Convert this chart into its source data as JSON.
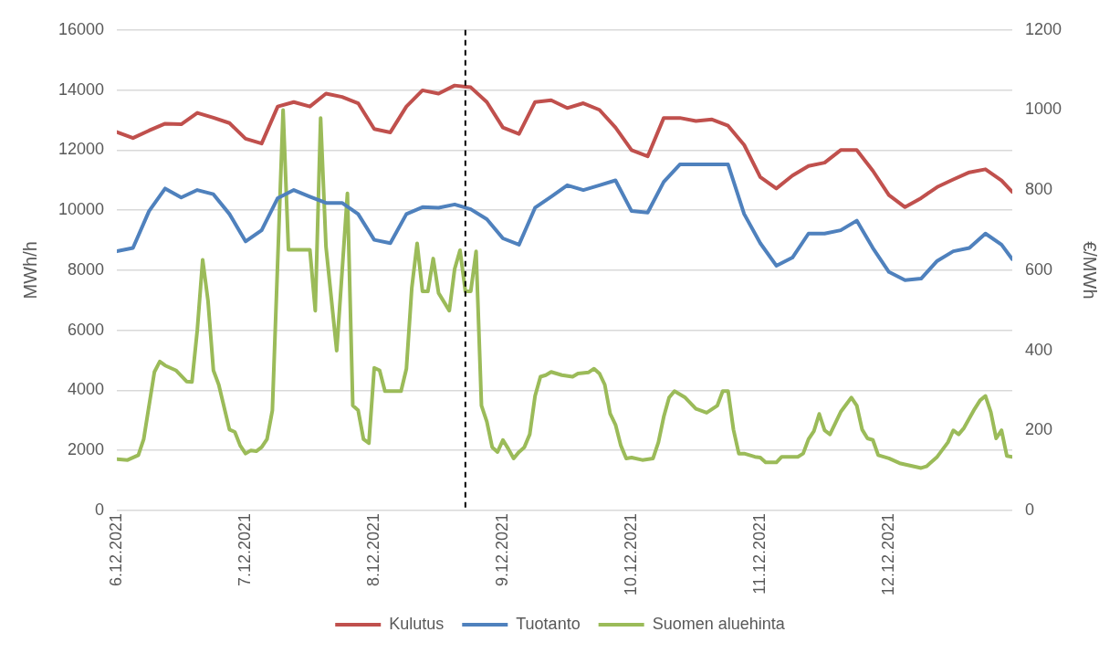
{
  "chart_data": {
    "type": "line",
    "ylabel": "MWh/h",
    "y2label": "€/MWh",
    "x": [
      "2021-12-06T00:00",
      "2021-12-06T03:00",
      "2021-12-06T06:00",
      "2021-12-06T09:00",
      "2021-12-06T12:00",
      "2021-12-06T15:00",
      "2021-12-06T18:00",
      "2021-12-06T21:00",
      "2021-12-07T00:00",
      "2021-12-07T03:00",
      "2021-12-07T06:00",
      "2021-12-07T09:00",
      "2021-12-07T12:00",
      "2021-12-07T15:00",
      "2021-12-07T18:00",
      "2021-12-07T21:00",
      "2021-12-08T00:00",
      "2021-12-08T03:00",
      "2021-12-08T06:00",
      "2021-12-08T09:00",
      "2021-12-08T12:00",
      "2021-12-08T15:00",
      "2021-12-08T18:00",
      "2021-12-08T21:00",
      "2021-12-09T00:00",
      "2021-12-09T03:00",
      "2021-12-09T06:00",
      "2021-12-09T09:00",
      "2021-12-09T12:00",
      "2021-12-09T15:00",
      "2021-12-09T18:00",
      "2021-12-09T21:00",
      "2021-12-10T00:00",
      "2021-12-10T03:00",
      "2021-12-10T06:00",
      "2021-12-10T09:00",
      "2021-12-10T12:00",
      "2021-12-10T15:00",
      "2021-12-10T18:00",
      "2021-12-10T21:00",
      "2021-12-11T00:00",
      "2021-12-11T03:00",
      "2021-12-11T06:00",
      "2021-12-11T09:00",
      "2021-12-11T12:00",
      "2021-12-11T15:00",
      "2021-12-11T18:00",
      "2021-12-11T21:00",
      "2021-12-12T00:00",
      "2021-12-12T03:00",
      "2021-12-12T06:00",
      "2021-12-12T09:00",
      "2021-12-12T12:00",
      "2021-12-12T15:00",
      "2021-12-12T18:00",
      "2021-12-12T21:00",
      "2021-12-12T23:00"
    ],
    "xlim": [
      "2021-12-06T00:00",
      "2021-12-12T23:00"
    ],
    "xticks": [
      {
        "value": "2021-12-06",
        "label": "6.12.2021"
      },
      {
        "value": "2021-12-07",
        "label": "7.12.2021"
      },
      {
        "value": "2021-12-08",
        "label": "8.12.2021"
      },
      {
        "value": "2021-12-09",
        "label": "9.12.2021"
      },
      {
        "value": "2021-12-10",
        "label": "10.12.2021"
      },
      {
        "value": "2021-12-11",
        "label": "11.12.2021"
      },
      {
        "value": "2021-12-12",
        "label": "12.12.2021"
      }
    ],
    "ylim": [
      0,
      16000
    ],
    "yticks": [
      0,
      2000,
      4000,
      6000,
      8000,
      10000,
      12000,
      14000,
      16000
    ],
    "y2lim": [
      0,
      1200
    ],
    "y2ticks": [
      0,
      200,
      400,
      600,
      800,
      1000,
      1200
    ],
    "grid": "y",
    "legend": "bottom",
    "line_style": "solid",
    "series": [
      {
        "name": "Kulutus",
        "color": "#c0504d",
        "values": [
          12600,
          12400,
          12650,
          12880,
          12860,
          13240,
          13080,
          12900,
          12380,
          12220,
          13450,
          13600,
          13450,
          13880,
          13770,
          13560,
          12700,
          12590,
          13450,
          13990,
          13880,
          14150,
          14090,
          13600,
          12750,
          12540,
          13600,
          13660,
          13400,
          13560,
          13340,
          12750,
          12000,
          11790,
          13070,
          13070,
          12970,
          13020,
          12810,
          12170,
          11100,
          10720,
          11150,
          11470,
          11580,
          12000,
          12000,
          11310,
          10500,
          10100,
          10400,
          10770,
          11020,
          11260,
          11360,
          10990,
          10610
        ]
      },
      {
        "name": "Tuotanto",
        "color": "#4f81bd",
        "values": [
          8630,
          8740,
          9970,
          10720,
          10420,
          10670,
          10530,
          9870,
          8960,
          9330,
          10400,
          10670,
          10450,
          10240,
          10240,
          9870,
          9010,
          8900,
          9870,
          10100,
          10080,
          10190,
          10030,
          9700,
          9060,
          8850,
          10080,
          10450,
          10830,
          10670,
          10830,
          10990,
          9970,
          9920,
          10940,
          11520,
          11520,
          11520,
          11520,
          9870,
          8900,
          8150,
          8420,
          9220,
          9220,
          9330,
          9650,
          8740,
          7940,
          7670,
          7720,
          8310,
          8630,
          8740,
          9220,
          8850,
          8370
        ]
      },
      {
        "name": "Suomen aluehinta",
        "color": "#9bbb59",
        "axis": "y2",
        "x": [
          "2021-12-06T00:00",
          "2021-12-06T02:00",
          "2021-12-06T04:00",
          "2021-12-06T05:00",
          "2021-12-06T07:00",
          "2021-12-06T08:00",
          "2021-12-06T09:00",
          "2021-12-06T11:00",
          "2021-12-06T13:00",
          "2021-12-06T14:00",
          "2021-12-06T15:00",
          "2021-12-06T16:00",
          "2021-12-06T17:00",
          "2021-12-06T18:00",
          "2021-12-06T19:00",
          "2021-12-06T21:00",
          "2021-12-06T22:00",
          "2021-12-06T23:00",
          "2021-12-07T00:00",
          "2021-12-07T01:00",
          "2021-12-07T02:00",
          "2021-12-07T03:00",
          "2021-12-07T04:00",
          "2021-12-07T05:00",
          "2021-12-07T07:00",
          "2021-12-07T08:00",
          "2021-12-07T12:00",
          "2021-12-07T13:00",
          "2021-12-07T14:00",
          "2021-12-07T15:00",
          "2021-12-07T17:00",
          "2021-12-07T19:00",
          "2021-12-07T20:00",
          "2021-12-07T21:00",
          "2021-12-07T22:00",
          "2021-12-07T23:00",
          "2021-12-08T00:00",
          "2021-12-08T01:00",
          "2021-12-08T02:00",
          "2021-12-08T05:00",
          "2021-12-08T06:00",
          "2021-12-08T07:00",
          "2021-12-08T08:00",
          "2021-12-08T09:00",
          "2021-12-08T10:00",
          "2021-12-08T11:00",
          "2021-12-08T12:00",
          "2021-12-08T14:00",
          "2021-12-08T15:00",
          "2021-12-08T16:00",
          "2021-12-08T17:00",
          "2021-12-08T18:00",
          "2021-12-08T19:00",
          "2021-12-08T20:00",
          "2021-12-08T21:00",
          "2021-12-08T22:00",
          "2021-12-08T23:00",
          "2021-12-09T00:00",
          "2021-12-09T01:00",
          "2021-12-09T02:00",
          "2021-12-09T03:00",
          "2021-12-09T04:00",
          "2021-12-09T05:00",
          "2021-12-09T06:00",
          "2021-12-09T07:00",
          "2021-12-09T08:00",
          "2021-12-09T09:00",
          "2021-12-09T11:00",
          "2021-12-09T13:00",
          "2021-12-09T14:00",
          "2021-12-09T16:00",
          "2021-12-09T17:00",
          "2021-12-09T18:00",
          "2021-12-09T19:00",
          "2021-12-09T20:00",
          "2021-12-09T21:00",
          "2021-12-09T22:00",
          "2021-12-09T23:00",
          "2021-12-10T00:00",
          "2021-12-10T02:00",
          "2021-12-10T04:00",
          "2021-12-10T05:00",
          "2021-12-10T06:00",
          "2021-12-10T07:00",
          "2021-12-10T08:00",
          "2021-12-10T10:00",
          "2021-12-10T12:00",
          "2021-12-10T14:00",
          "2021-12-10T16:00",
          "2021-12-10T17:00",
          "2021-12-10T18:00",
          "2021-12-10T19:00",
          "2021-12-10T20:00",
          "2021-12-10T21:00",
          "2021-12-10T23:00",
          "2021-12-11T00:00",
          "2021-12-11T01:00",
          "2021-12-11T03:00",
          "2021-12-11T04:00",
          "2021-12-11T07:00",
          "2021-12-11T08:00",
          "2021-12-11T09:00",
          "2021-12-11T10:00",
          "2021-12-11T11:00",
          "2021-12-11T12:00",
          "2021-12-11T13:00",
          "2021-12-11T15:00",
          "2021-12-11T17:00",
          "2021-12-11T18:00",
          "2021-12-11T19:00",
          "2021-12-11T20:00",
          "2021-12-11T21:00",
          "2021-12-11T22:00",
          "2021-12-12T00:00",
          "2021-12-12T02:00",
          "2021-12-12T06:00",
          "2021-12-12T07:00",
          "2021-12-12T09:00",
          "2021-12-12T11:00",
          "2021-12-12T12:00",
          "2021-12-12T13:00",
          "2021-12-12T14:00",
          "2021-12-12T16:00",
          "2021-12-12T17:00",
          "2021-12-12T18:00",
          "2021-12-12T19:00",
          "2021-12-12T20:00",
          "2021-12-12T21:00",
          "2021-12-12T22:00",
          "2021-12-12T23:00"
        ],
        "values": [
          128,
          126,
          138,
          178,
          346,
          372,
          362,
          350,
          322,
          321,
          451,
          626,
          523,
          350,
          314,
          202,
          196,
          162,
          142,
          150,
          148,
          158,
          178,
          250,
          1000,
          651,
          651,
          499,
          980,
          659,
          399,
          792,
          262,
          250,
          178,
          168,
          356,
          350,
          298,
          298,
          354,
          555,
          667,
          547,
          547,
          629,
          543,
          499,
          603,
          650,
          547,
          547,
          647,
          262,
          222,
          158,
          146,
          176,
          154,
          130,
          146,
          158,
          190,
          286,
          334,
          338,
          346,
          338,
          334,
          342,
          345,
          354,
          342,
          314,
          242,
          214,
          162,
          130,
          132,
          126,
          130,
          170,
          234,
          282,
          298,
          282,
          254,
          244,
          262,
          298,
          298,
          202,
          142,
          142,
          134,
          132,
          120,
          120,
          134,
          134,
          142,
          178,
          198,
          241,
          200,
          190,
          246,
          282,
          262,
          202,
          180,
          176,
          138,
          130,
          118,
          106,
          110,
          134,
          170,
          200,
          190,
          206,
          254,
          275,
          286,
          246,
          180,
          200,
          136,
          134
        ]
      }
    ],
    "ref_lines": [
      {
        "axis": "x",
        "value": "2021-12-08T17:00",
        "color": "#000000",
        "line_style": "dashed"
      }
    ]
  }
}
